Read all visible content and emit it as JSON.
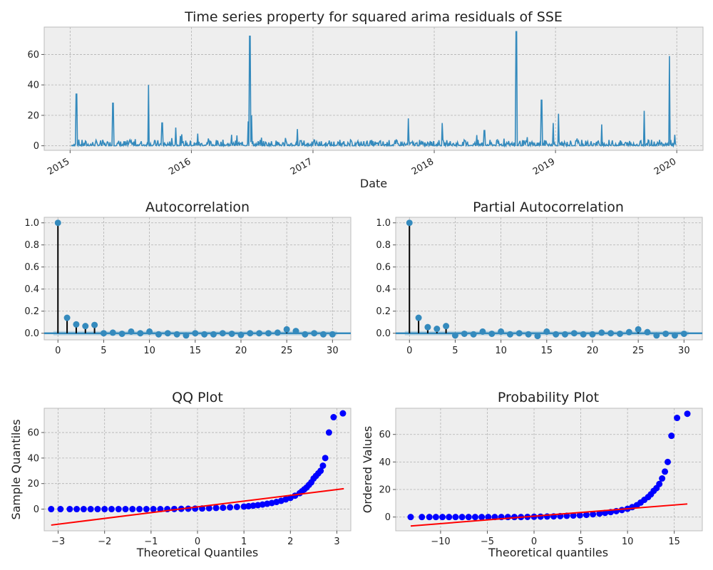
{
  "chart_data": [
    {
      "type": "line",
      "title": "Time series property for squared arima residuals of SSE",
      "xlabel": "Date",
      "ylabel": "",
      "xlim": [
        "2014-10-15",
        "2020-03-20"
      ],
      "ylim": [
        -3,
        78
      ],
      "xticks": [
        "2015",
        "2016",
        "2017",
        "2018",
        "2019",
        "2020"
      ],
      "yticks": [
        0,
        20,
        40,
        60
      ],
      "grid": true,
      "series": [
        {
          "color": "#348abd",
          "spikes": [
            {
              "x": "2015-01-20",
              "y": 34
            },
            {
              "x": "2015-05-10",
              "y": 28
            },
            {
              "x": "2015-08-25",
              "y": 40
            },
            {
              "x": "2015-10-05",
              "y": 15
            },
            {
              "x": "2015-11-15",
              "y": 12
            },
            {
              "x": "2016-01-20",
              "y": 8
            },
            {
              "x": "2016-06-25",
              "y": 72
            },
            {
              "x": "2016-06-30",
              "y": 20
            },
            {
              "x": "2016-06-20",
              "y": 16
            },
            {
              "x": "2016-11-15",
              "y": 11
            },
            {
              "x": "2017-10-15",
              "y": 18
            },
            {
              "x": "2018-01-25",
              "y": 15
            },
            {
              "x": "2018-06-01",
              "y": 10
            },
            {
              "x": "2018-09-05",
              "y": 75
            },
            {
              "x": "2018-11-20",
              "y": 30
            },
            {
              "x": "2018-12-25",
              "y": 15
            },
            {
              "x": "2019-01-10",
              "y": 21
            },
            {
              "x": "2019-05-20",
              "y": 14
            },
            {
              "x": "2019-09-25",
              "y": 23
            },
            {
              "x": "2019-12-10",
              "y": 59
            }
          ]
        }
      ]
    },
    {
      "type": "stem",
      "title": "Autocorrelation",
      "xlabel": "",
      "ylabel": "",
      "xlim": [
        -1.5,
        32
      ],
      "ylim": [
        -0.06,
        1.05
      ],
      "xticks": [
        0,
        5,
        10,
        15,
        20,
        25,
        30
      ],
      "yticks": [
        0.0,
        0.2,
        0.4,
        0.6,
        0.8,
        1.0
      ],
      "grid": true,
      "lags": [
        0,
        1,
        2,
        3,
        4,
        5,
        6,
        7,
        8,
        9,
        10,
        11,
        12,
        13,
        14,
        15,
        16,
        17,
        18,
        19,
        20,
        21,
        22,
        23,
        24,
        25,
        26,
        27,
        28,
        29,
        30
      ],
      "values": [
        1.0,
        0.14,
        0.08,
        0.065,
        0.075,
        0.0,
        0.005,
        -0.005,
        0.015,
        0.0,
        0.015,
        -0.01,
        0.0,
        -0.01,
        -0.02,
        0.0,
        -0.01,
        -0.01,
        0.0,
        -0.005,
        -0.015,
        0.0,
        0.0,
        0.0,
        0.005,
        0.035,
        0.02,
        -0.01,
        0.0,
        -0.01,
        -0.01
      ],
      "conf_band": 0.02
    },
    {
      "type": "stem",
      "title": "Partial Autocorrelation",
      "xlabel": "",
      "ylabel": "",
      "xlim": [
        -1.5,
        32
      ],
      "ylim": [
        -0.06,
        1.05
      ],
      "xticks": [
        0,
        5,
        10,
        15,
        20,
        25,
        30
      ],
      "yticks": [
        0.0,
        0.2,
        0.4,
        0.6,
        0.8,
        1.0
      ],
      "grid": true,
      "lags": [
        0,
        1,
        2,
        3,
        4,
        5,
        6,
        7,
        8,
        9,
        10,
        11,
        12,
        13,
        14,
        15,
        16,
        17,
        18,
        19,
        20,
        21,
        22,
        23,
        24,
        25,
        26,
        27,
        28,
        29,
        30
      ],
      "values": [
        1.0,
        0.14,
        0.055,
        0.04,
        0.065,
        -0.02,
        -0.005,
        -0.01,
        0.015,
        -0.005,
        0.015,
        -0.01,
        0.0,
        -0.01,
        -0.025,
        0.015,
        -0.01,
        -0.01,
        0.0,
        -0.01,
        -0.01,
        0.005,
        0.0,
        -0.005,
        0.01,
        0.035,
        0.01,
        -0.02,
        -0.005,
        -0.02,
        -0.005
      ],
      "conf_band": 0.02
    },
    {
      "type": "scatter",
      "title": "QQ Plot",
      "xlabel": "Theoretical Quantiles",
      "ylabel": "Sample Quantiles",
      "xlim": [
        -3.3,
        3.3
      ],
      "ylim": [
        -17,
        79
      ],
      "xticks": [
        -3,
        -2,
        -1,
        0,
        1,
        2,
        3
      ],
      "yticks": [
        0,
        20,
        40,
        60
      ],
      "grid": true,
      "marker_color": "#0000ff",
      "fit_line": {
        "color": "#ff0000",
        "x": [
          -3.15,
          3.15
        ],
        "y": [
          -12.5,
          16.0
        ]
      },
      "points": [
        [
          -3.15,
          0
        ],
        [
          -2.95,
          0
        ],
        [
          -2.75,
          0
        ],
        [
          -2.6,
          0
        ],
        [
          -2.45,
          0
        ],
        [
          -2.3,
          0
        ],
        [
          -2.15,
          0
        ],
        [
          -2.0,
          0
        ],
        [
          -1.85,
          0
        ],
        [
          -1.7,
          0
        ],
        [
          -1.55,
          0
        ],
        [
          -1.4,
          0
        ],
        [
          -1.25,
          0
        ],
        [
          -1.1,
          0
        ],
        [
          -0.95,
          0
        ],
        [
          -0.8,
          0
        ],
        [
          -0.65,
          0
        ],
        [
          -0.5,
          0.1
        ],
        [
          -0.35,
          0.2
        ],
        [
          -0.2,
          0.3
        ],
        [
          -0.05,
          0.4
        ],
        [
          0.1,
          0.5
        ],
        [
          0.25,
          0.7
        ],
        [
          0.4,
          0.9
        ],
        [
          0.55,
          1.1
        ],
        [
          0.7,
          1.4
        ],
        [
          0.85,
          1.7
        ],
        [
          1.0,
          2.0
        ],
        [
          1.1,
          2.3
        ],
        [
          1.2,
          2.7
        ],
        [
          1.3,
          3.1
        ],
        [
          1.4,
          3.6
        ],
        [
          1.5,
          4.2
        ],
        [
          1.6,
          4.8
        ],
        [
          1.7,
          5.6
        ],
        [
          1.8,
          6.5
        ],
        [
          1.9,
          7.6
        ],
        [
          2.0,
          8.8
        ],
        [
          2.1,
          10.5
        ],
        [
          2.2,
          12.5
        ],
        [
          2.25,
          14
        ],
        [
          2.3,
          15.5
        ],
        [
          2.35,
          17
        ],
        [
          2.4,
          19
        ],
        [
          2.45,
          21
        ],
        [
          2.5,
          24
        ],
        [
          2.55,
          26
        ],
        [
          2.6,
          28
        ],
        [
          2.65,
          30
        ],
        [
          2.7,
          34
        ],
        [
          2.75,
          40
        ],
        [
          2.83,
          60
        ],
        [
          2.93,
          72
        ],
        [
          3.13,
          75
        ]
      ]
    },
    {
      "type": "scatter",
      "title": "Probability Plot",
      "xlabel": "Theoretical quantiles",
      "ylabel": "Ordered Values",
      "xlim": [
        -14.8,
        18.0
      ],
      "ylim": [
        -10,
        79
      ],
      "xticks": [
        -10,
        -5,
        0,
        5,
        10,
        15
      ],
      "yticks": [
        0,
        20,
        40,
        60
      ],
      "grid": true,
      "marker_color": "#0000ff",
      "fit_line": {
        "color": "#ff0000",
        "x": [
          -13.2,
          16.4
        ],
        "y": [
          -6.5,
          9.5
        ]
      },
      "points": [
        [
          -13.2,
          0
        ],
        [
          -12,
          0
        ],
        [
          -11.2,
          0
        ],
        [
          -10.5,
          0
        ],
        [
          -9.8,
          0
        ],
        [
          -9.1,
          0
        ],
        [
          -8.4,
          0
        ],
        [
          -7.7,
          0
        ],
        [
          -7,
          0
        ],
        [
          -6.3,
          0
        ],
        [
          -5.6,
          0
        ],
        [
          -4.9,
          0
        ],
        [
          -4.2,
          0
        ],
        [
          -3.5,
          0
        ],
        [
          -2.8,
          0
        ],
        [
          -2.1,
          0
        ],
        [
          -1.4,
          0
        ],
        [
          -0.7,
          0.1
        ],
        [
          0,
          0.2
        ],
        [
          0.7,
          0.3
        ],
        [
          1.4,
          0.4
        ],
        [
          2.1,
          0.5
        ],
        [
          2.8,
          0.7
        ],
        [
          3.5,
          0.9
        ],
        [
          4.2,
          1.1
        ],
        [
          4.9,
          1.3
        ],
        [
          5.6,
          1.6
        ],
        [
          6.3,
          2
        ],
        [
          7,
          2.5
        ],
        [
          7.6,
          3
        ],
        [
          8.2,
          3.6
        ],
        [
          8.8,
          4.3
        ],
        [
          9.4,
          5.1
        ],
        [
          10,
          6
        ],
        [
          10.5,
          7.2
        ],
        [
          11,
          8.6
        ],
        [
          11.4,
          10.5
        ],
        [
          11.8,
          12.5
        ],
        [
          12.2,
          14.5
        ],
        [
          12.5,
          16.5
        ],
        [
          12.8,
          19
        ],
        [
          13.1,
          21
        ],
        [
          13.4,
          24
        ],
        [
          13.7,
          28
        ],
        [
          14.0,
          33
        ],
        [
          14.3,
          40
        ],
        [
          14.7,
          59
        ],
        [
          15.3,
          72
        ],
        [
          16.4,
          75
        ]
      ]
    }
  ]
}
